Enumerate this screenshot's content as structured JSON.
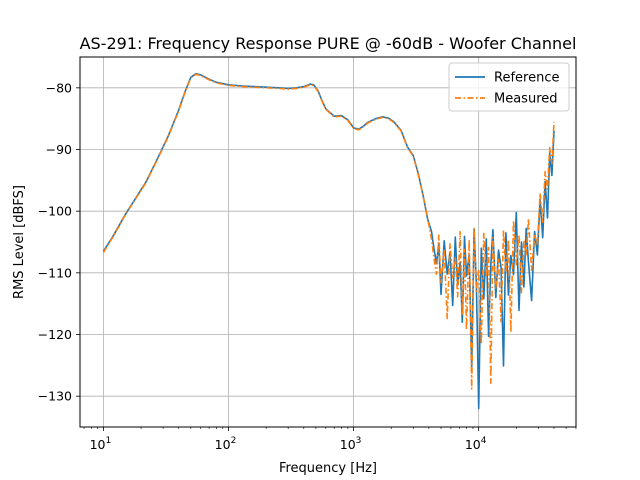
{
  "chart_data": {
    "type": "line",
    "title": "AS-291: Frequency Response PURE @ -60dB - Woofer Channel",
    "xlabel": "Frequency [Hz]",
    "ylabel": "RMS Level [dBFS]",
    "xscale": "log",
    "xlim": [
      6.5,
      60000
    ],
    "ylim": [
      -135,
      -75
    ],
    "x_ticks": [
      10,
      100,
      1000,
      10000
    ],
    "x_tick_labels": [
      {
        "base": "10",
        "exp": "1"
      },
      {
        "base": "10",
        "exp": "2"
      },
      {
        "base": "10",
        "exp": "3"
      },
      {
        "base": "10",
        "exp": "4"
      }
    ],
    "y_ticks": [
      -130,
      -120,
      -110,
      -100,
      -90,
      -80
    ],
    "y_tick_labels": [
      "−130",
      "−120",
      "−110",
      "−100",
      "−90",
      "−80"
    ],
    "grid": true,
    "legend_position": "top-right",
    "series": [
      {
        "name": "Reference",
        "color": "#1f77b4",
        "style": "solid",
        "x": [
          10,
          12,
          15,
          18,
          22,
          27,
          33,
          40,
          45,
          50,
          55,
          60,
          70,
          80,
          100,
          130,
          160,
          200,
          250,
          300,
          350,
          400,
          450,
          480,
          520,
          560,
          600,
          700,
          800,
          900,
          1000,
          1100,
          1200,
          1300,
          1500,
          1700,
          1900,
          2100,
          2400,
          2700,
          3000,
          3300,
          3600,
          3900,
          4200,
          4400,
          4600,
          4800,
          5000,
          5300,
          5600,
          5900,
          6200,
          6500,
          6800,
          7100,
          7400,
          7700,
          8000,
          8400,
          8800,
          9200,
          9600,
          10000,
          10500,
          11000,
          11500,
          12000,
          12500,
          13000,
          13700,
          14400,
          15100,
          15800,
          16500,
          17300,
          18100,
          19000,
          20000,
          21000,
          22000,
          23000,
          24000,
          25000,
          26500,
          28000,
          29500,
          31000,
          32500,
          34000,
          35500,
          37000,
          38500,
          40000
        ],
        "y": [
          -106.5,
          -104,
          -100.5,
          -98,
          -95.2,
          -91.5,
          -87.8,
          -83.6,
          -80.6,
          -78.3,
          -77.7,
          -77.9,
          -78.6,
          -79.1,
          -79.5,
          -79.7,
          -79.8,
          -79.9,
          -80.0,
          -80.1,
          -80.0,
          -79.8,
          -79.4,
          -79.5,
          -80.5,
          -82.1,
          -83.4,
          -84.6,
          -84.5,
          -85.2,
          -86.5,
          -86.7,
          -86.2,
          -85.6,
          -85.0,
          -84.7,
          -84.9,
          -85.5,
          -86.9,
          -89.6,
          -91.0,
          -94.0,
          -97.5,
          -101.2,
          -103.3,
          -106.2,
          -108.5,
          -105.2,
          -113.5,
          -104.8,
          -110.2,
          -106.6,
          -115.3,
          -104.2,
          -112.0,
          -108.3,
          -118.0,
          -104.1,
          -110.5,
          -107.0,
          -125.5,
          -103.0,
          -111.8,
          -132.0,
          -106.0,
          -114.2,
          -104.5,
          -120.3,
          -108.7,
          -103.0,
          -114.0,
          -106.3,
          -109.2,
          -125.1,
          -103.5,
          -113.6,
          -107.2,
          -110.3,
          -100.2,
          -116.1,
          -105.0,
          -112.3,
          -102.8,
          -108.1,
          -114.5,
          -103.3,
          -107.1,
          -98.0,
          -104.3,
          -95.2,
          -101.1,
          -90.6,
          -94.2,
          -87.0
        ]
      },
      {
        "name": "Measured",
        "color": "#ff7f0e",
        "style": "dashdot",
        "x": [
          10,
          12,
          15,
          18,
          22,
          27,
          33,
          40,
          45,
          50,
          55,
          60,
          70,
          80,
          100,
          130,
          160,
          200,
          250,
          300,
          350,
          400,
          450,
          480,
          520,
          560,
          600,
          700,
          800,
          900,
          1000,
          1100,
          1200,
          1300,
          1500,
          1700,
          1900,
          2100,
          2400,
          2700,
          3000,
          3300,
          3600,
          3900,
          4200,
          4400,
          4600,
          4800,
          5000,
          5300,
          5600,
          5900,
          6200,
          6500,
          6800,
          7100,
          7400,
          7700,
          8000,
          8400,
          8800,
          9200,
          9600,
          10000,
          10500,
          11000,
          11500,
          12000,
          12500,
          13000,
          13700,
          14400,
          15100,
          15800,
          16500,
          17300,
          18100,
          19000,
          20000,
          21000,
          22000,
          23000,
          24000,
          25000,
          26500,
          28000,
          29500,
          31000,
          32500,
          34000,
          35500,
          37000,
          38500,
          40000
        ],
        "y": [
          -106.7,
          -104.1,
          -100.6,
          -98.1,
          -95.3,
          -91.6,
          -87.9,
          -83.7,
          -80.7,
          -78.4,
          -77.8,
          -78.0,
          -78.7,
          -79.2,
          -79.6,
          -79.8,
          -79.9,
          -80.0,
          -80.1,
          -80.2,
          -80.1,
          -79.9,
          -79.5,
          -79.6,
          -80.6,
          -82.2,
          -83.5,
          -84.7,
          -84.6,
          -85.3,
          -86.6,
          -86.8,
          -86.3,
          -85.7,
          -85.1,
          -84.8,
          -85.0,
          -85.6,
          -87.0,
          -89.7,
          -91.1,
          -94.1,
          -97.6,
          -101.0,
          -104.5,
          -107.8,
          -110.2,
          -103.9,
          -111.6,
          -106.1,
          -117.4,
          -105.3,
          -110.8,
          -107.4,
          -113.9,
          -103.3,
          -116.8,
          -106.2,
          -119.2,
          -104.6,
          -128.8,
          -102.7,
          -113.0,
          -109.4,
          -121.5,
          -103.6,
          -110.7,
          -105.9,
          -127.9,
          -104.3,
          -112.6,
          -107.8,
          -117.9,
          -103.1,
          -110.0,
          -104.6,
          -119.6,
          -101.5,
          -108.7,
          -103.9,
          -113.2,
          -104.7,
          -107.3,
          -101.2,
          -109.6,
          -103.8,
          -105.5,
          -97.1,
          -101.8,
          -93.6,
          -96.4,
          -89.7,
          -92.3,
          -85.5
        ]
      }
    ]
  }
}
